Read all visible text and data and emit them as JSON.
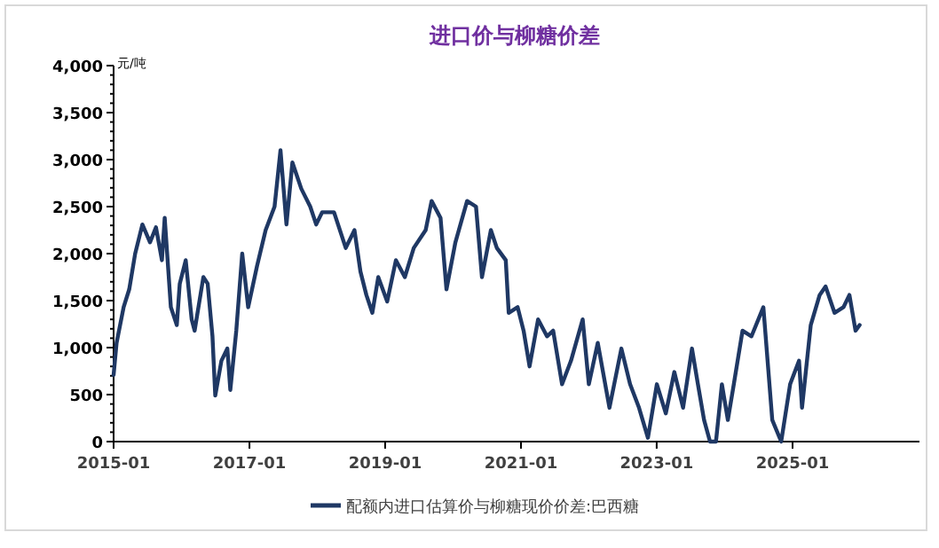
{
  "chart_data": {
    "type": "line",
    "title": "进口价与柳糖价差",
    "ylabel": "元/吨",
    "legend": "bottom",
    "grid": false,
    "marker": "none",
    "line_style": "solid",
    "xlim": [
      "2015-01-01",
      "2026-11-15"
    ],
    "xticks": [
      {
        "value": "2015-01-01",
        "label": "2015-01"
      },
      {
        "value": "2017-01-01",
        "label": "2017-01"
      },
      {
        "value": "2019-01-01",
        "label": "2019-01"
      },
      {
        "value": "2021-01-01",
        "label": "2021-01"
      },
      {
        "value": "2023-01-01",
        "label": "2023-01"
      },
      {
        "value": "2025-01-01",
        "label": "2025-01"
      }
    ],
    "ylim": [
      0,
      4000
    ],
    "yticks": [
      {
        "value": 0,
        "label": "0"
      },
      {
        "value": 500,
        "label": "500"
      },
      {
        "value": 1000,
        "label": "1,000"
      },
      {
        "value": 1500,
        "label": "1,500"
      },
      {
        "value": 2000,
        "label": "2,000"
      },
      {
        "value": 2500,
        "label": "2,500"
      },
      {
        "value": 3000,
        "label": "3,000"
      },
      {
        "value": 3500,
        "label": "3,500"
      },
      {
        "value": 4000,
        "label": "4,000"
      }
    ],
    "x": [
      "2015-01-01",
      "2015-01-17",
      "2015-02-24",
      "2015-03-26",
      "2015-04-27",
      "2015-06-05",
      "2015-07-16",
      "2015-08-17",
      "2015-09-18",
      "2015-10-03",
      "2015-11-05",
      "2015-12-07",
      "2015-12-23",
      "2016-01-24",
      "2016-02-25",
      "2016-03-12",
      "2016-04-28",
      "2016-05-21",
      "2016-06-16",
      "2016-07-01",
      "2016-08-03",
      "2016-09-04",
      "2016-09-20",
      "2016-10-22",
      "2016-11-23",
      "2016-12-25",
      "2017-02-11",
      "2017-03-29",
      "2017-05-16",
      "2017-06-17",
      "2017-07-19",
      "2017-08-20",
      "2017-10-07",
      "2017-11-24",
      "2017-12-26",
      "2018-01-27",
      "2018-04-01",
      "2018-06-03",
      "2018-07-20",
      "2018-08-21",
      "2018-09-22",
      "2018-10-24",
      "2018-11-25",
      "2019-01-12",
      "2019-02-28",
      "2019-04-17",
      "2019-06-04",
      "2019-08-07",
      "2019-09-08",
      "2019-10-26",
      "2019-11-27",
      "2020-01-14",
      "2020-03-17",
      "2020-05-04",
      "2020-06-05",
      "2020-07-23",
      "2020-08-24",
      "2020-10-11",
      "2020-10-27",
      "2020-12-14",
      "2021-01-15",
      "2021-02-16",
      "2021-04-03",
      "2021-05-21",
      "2021-06-23",
      "2021-08-10",
      "2021-09-27",
      "2021-11-29",
      "2022-01-01",
      "2022-02-18",
      "2022-04-22",
      "2022-06-25",
      "2022-08-11",
      "2022-09-28",
      "2022-11-15",
      "2023-01-02",
      "2023-02-19",
      "2023-04-06",
      "2023-05-23",
      "2023-07-10",
      "2023-08-11",
      "2023-09-13",
      "2023-10-15",
      "2023-11-16",
      "2023-12-18",
      "2024-01-19",
      "2024-02-20",
      "2024-04-07",
      "2024-05-25",
      "2024-07-28",
      "2024-09-14",
      "2024-11-01",
      "2024-12-19",
      "2025-02-05",
      "2025-02-21",
      "2025-04-09",
      "2025-05-27",
      "2025-06-28",
      "2025-08-15",
      "2025-10-02",
      "2025-11-03",
      "2025-12-06",
      "2025-12-28"
    ],
    "series": [
      {
        "name": "配额内进口估算价与柳糖现价价差:巴西糖",
        "color": "#1f3864",
        "values": [
          710,
          1050,
          1430,
          1620,
          2000,
          2310,
          2120,
          2280,
          1930,
          2380,
          1430,
          1240,
          1680,
          1930,
          1300,
          1180,
          1750,
          1680,
          1120,
          490,
          860,
          990,
          550,
          1180,
          2000,
          1430,
          1870,
          2250,
          2500,
          3100,
          2310,
          2970,
          2690,
          2500,
          2310,
          2440,
          2440,
          2060,
          2250,
          1810,
          1560,
          1370,
          1750,
          1490,
          1930,
          1750,
          2060,
          2250,
          2560,
          2380,
          1620,
          2120,
          2560,
          2500,
          1750,
          2250,
          2060,
          1930,
          1370,
          1430,
          1180,
          800,
          1300,
          1120,
          1180,
          610,
          860,
          1300,
          610,
          1050,
          360,
          990,
          610,
          360,
          40,
          610,
          300,
          740,
          360,
          990,
          610,
          230,
          0,
          0,
          610,
          230,
          610,
          1180,
          1120,
          1430,
          230,
          0,
          610,
          860,
          360,
          1240,
          1560,
          1650,
          1370,
          1430,
          1560,
          1180,
          1240
        ]
      }
    ]
  }
}
